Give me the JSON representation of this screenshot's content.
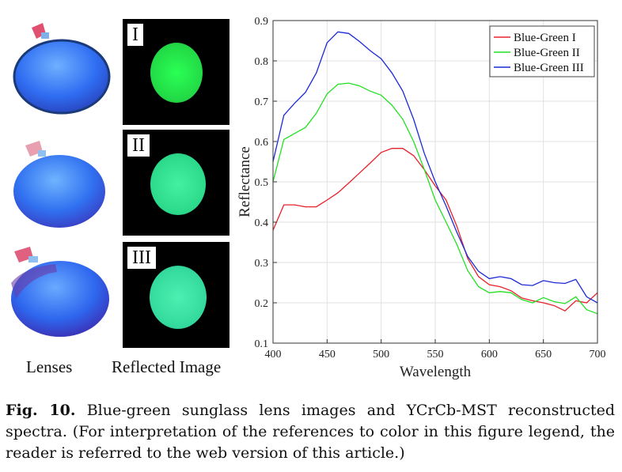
{
  "panels": {
    "lenses_label": "Lenses",
    "reflected_label": "Reflected Image",
    "rows": [
      {
        "numeral": "I",
        "reflect_color": "#22d845"
      },
      {
        "numeral": "II",
        "reflect_color": "#2bd98a"
      },
      {
        "numeral": "III",
        "reflect_color": "#33d99c"
      }
    ]
  },
  "chart_data": {
    "type": "line",
    "xlabel": "Wavelength",
    "ylabel": "Reflectance",
    "xlim": [
      400,
      700
    ],
    "ylim": [
      0.1,
      0.9
    ],
    "xticks": [
      "400",
      "450",
      "500",
      "550",
      "600",
      "650",
      "700"
    ],
    "yticks": [
      "0.1",
      "0.2",
      "0.3",
      "0.4",
      "0.5",
      "0.6",
      "0.7",
      "0.8",
      "0.9"
    ],
    "legend_position": "top-right",
    "x": [
      400,
      410,
      420,
      430,
      440,
      450,
      460,
      470,
      480,
      490,
      500,
      510,
      520,
      530,
      540,
      550,
      560,
      570,
      580,
      590,
      600,
      610,
      620,
      630,
      640,
      650,
      660,
      670,
      680,
      690,
      700
    ],
    "series": [
      {
        "name": "Blue-Green I",
        "color": "#e8202a",
        "values": [
          0.38,
          0.443,
          0.443,
          0.438,
          0.438,
          0.455,
          0.473,
          0.497,
          0.522,
          0.547,
          0.573,
          0.583,
          0.583,
          0.565,
          0.53,
          0.49,
          0.455,
          0.39,
          0.31,
          0.265,
          0.245,
          0.24,
          0.23,
          0.212,
          0.205,
          0.2,
          0.193,
          0.18,
          0.205,
          0.2,
          0.225
        ]
      },
      {
        "name": "Blue-Green II",
        "color": "#23e023",
        "values": [
          0.5,
          0.605,
          0.62,
          0.635,
          0.67,
          0.718,
          0.742,
          0.745,
          0.738,
          0.725,
          0.715,
          0.69,
          0.655,
          0.6,
          0.53,
          0.455,
          0.4,
          0.345,
          0.28,
          0.24,
          0.225,
          0.228,
          0.225,
          0.208,
          0.2,
          0.213,
          0.203,
          0.198,
          0.215,
          0.183,
          0.173
        ]
      },
      {
        "name": "Blue-Green III",
        "color": "#1c2ad6",
        "values": [
          0.55,
          0.665,
          0.695,
          0.722,
          0.77,
          0.845,
          0.872,
          0.868,
          0.848,
          0.825,
          0.805,
          0.77,
          0.725,
          0.655,
          0.57,
          0.5,
          0.44,
          0.375,
          0.315,
          0.278,
          0.26,
          0.265,
          0.26,
          0.245,
          0.243,
          0.255,
          0.25,
          0.248,
          0.258,
          0.215,
          0.2
        ]
      }
    ]
  },
  "caption": {
    "label": "Fig. 10.",
    "text": " Blue-green sunglass lens images and YCrCb-MST reconstructed spectra. (For interpretation of the references to color in this figure legend, the reader is referred to the web version of this article.)"
  }
}
